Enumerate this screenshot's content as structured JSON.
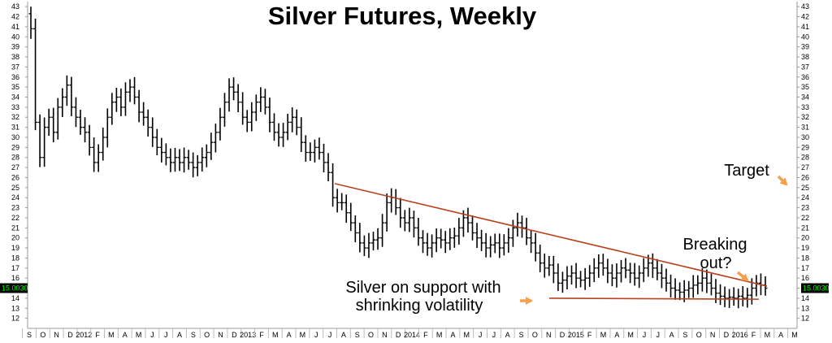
{
  "chart_data": {
    "type": "ohlc",
    "title": "Silver Futures, Weekly",
    "ylim": [
      11,
      43.5
    ],
    "yticks": [
      12,
      13,
      14,
      15,
      16,
      17,
      18,
      19,
      20,
      21,
      22,
      23,
      24,
      25,
      26,
      27,
      28,
      29,
      30,
      31,
      32,
      33,
      34,
      35,
      36,
      37,
      38,
      39,
      40,
      41,
      42,
      43
    ],
    "x_axis_labels": [
      "S",
      "O",
      "N",
      "D",
      "2012",
      "F",
      "M",
      "A",
      "M",
      "J",
      "J",
      "A",
      "S",
      "O",
      "N",
      "D",
      "2013",
      "F",
      "M",
      "A",
      "M",
      "J",
      "J",
      "A",
      "S",
      "O",
      "N",
      "D",
      "2014",
      "F",
      "M",
      "A",
      "M",
      "J",
      "J",
      "A",
      "S",
      "O",
      "N",
      "D",
      "2015",
      "F",
      "M",
      "A",
      "M",
      "J",
      "J",
      "A",
      "S",
      "O",
      "N",
      "D",
      "2016",
      "F",
      "M",
      "A",
      "M"
    ],
    "grid": false,
    "current_price": "15.0030",
    "closes": [
      40.8,
      31.5,
      28.0,
      31.0,
      32.0,
      30.5,
      33.0,
      34.0,
      35.2,
      33.0,
      32.0,
      31.0,
      30.5,
      29.0,
      27.5,
      28.5,
      30.0,
      32.0,
      33.5,
      34.0,
      33.0,
      34.5,
      35.0,
      34.0,
      32.5,
      32.0,
      31.0,
      30.0,
      29.0,
      28.5,
      28.0,
      27.5,
      28.0,
      27.5,
      28.0,
      27.5,
      27.0,
      27.5,
      28.0,
      28.5,
      29.5,
      30.5,
      32.0,
      33.5,
      35.0,
      34.5,
      33.5,
      32.0,
      31.5,
      32.5,
      33.5,
      34.0,
      33.0,
      31.5,
      30.5,
      30.0,
      30.5,
      31.5,
      32.0,
      31.0,
      29.5,
      28.5,
      28.5,
      29.0,
      28.5,
      27.5,
      26.5,
      24.0,
      23.5,
      23.5,
      22.5,
      21.5,
      20.5,
      19.5,
      19.0,
      19.5,
      19.8,
      20.0,
      21.5,
      23.5,
      24.0,
      23.0,
      22.0,
      21.5,
      22.0,
      21.0,
      20.0,
      19.5,
      19.0,
      19.5,
      20.0,
      19.8,
      19.5,
      20.0,
      20.2,
      21.0,
      22.0,
      21.5,
      20.5,
      20.0,
      19.5,
      19.0,
      19.3,
      19.5,
      19.0,
      19.5,
      20.0,
      21.0,
      21.5,
      21.0,
      20.0,
      19.5,
      18.5,
      17.5,
      17.0,
      17.3,
      16.5,
      15.5,
      15.8,
      16.2,
      16.5,
      16.0,
      15.8,
      16.0,
      16.5,
      17.0,
      17.5,
      17.0,
      16.5,
      16.0,
      16.5,
      17.0,
      16.8,
      16.5,
      16.0,
      16.5,
      17.0,
      17.5,
      17.0,
      16.5,
      16.0,
      15.5,
      15.0,
      14.8,
      14.6,
      14.8,
      15.0,
      15.3,
      15.5,
      16.0,
      15.5,
      15.0,
      14.5,
      14.2,
      14.0,
      14.1,
      14.0,
      14.2,
      14.0,
      14.3,
      15.0,
      15.5,
      15.3,
      15.0
    ],
    "annotations": [
      {
        "text": "Silver on support with"
      },
      {
        "text": "shrinking volatility"
      },
      {
        "text": "Breaking"
      },
      {
        "text": "out?"
      },
      {
        "text": "Target"
      }
    ],
    "resistance_line": [
      [
        25.4
      ],
      [
        15.2
      ]
    ],
    "support_line": [
      [
        14.0
      ],
      [
        13.9
      ]
    ],
    "colors": {
      "trendline": "#b8431f",
      "arrow": "#f4a04c",
      "bars": "#000000",
      "price_tag_bg": "#000000",
      "price_tag_fg": "#00ff00"
    }
  }
}
